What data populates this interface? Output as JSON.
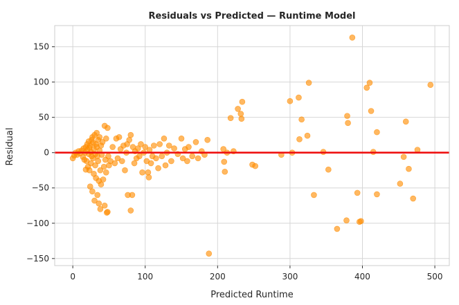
{
  "chart_data": {
    "type": "scatter",
    "title": "Residuals vs Predicted — Runtime Model",
    "xlabel": "Predicted Runtime",
    "ylabel": "Residual",
    "xlim": [
      -25,
      520
    ],
    "ylim": [
      -160,
      180
    ],
    "xticks": [
      0,
      100,
      200,
      300,
      400,
      500
    ],
    "yticks": [
      -150,
      -100,
      -50,
      0,
      50,
      100,
      150
    ],
    "xtick_labels": [
      "0",
      "100",
      "200",
      "300",
      "400",
      "500"
    ],
    "ytick_labels": [
      "−150",
      "−100",
      "−50",
      "0",
      "50",
      "100",
      "150"
    ],
    "grid": true,
    "reference_line": {
      "y": 0,
      "color": "#ee1111"
    },
    "point_color": "#ff8c00",
    "points": [
      [
        0,
        -8
      ],
      [
        2,
        -4
      ],
      [
        4,
        0
      ],
      [
        6,
        -3
      ],
      [
        8,
        2
      ],
      [
        10,
        -1
      ],
      [
        12,
        3
      ],
      [
        14,
        -6
      ],
      [
        15,
        6
      ],
      [
        16,
        -10
      ],
      [
        17,
        0
      ],
      [
        18,
        8
      ],
      [
        18,
        -24
      ],
      [
        19,
        -12
      ],
      [
        20,
        4
      ],
      [
        20,
        12
      ],
      [
        21,
        -20
      ],
      [
        22,
        -2
      ],
      [
        22,
        16
      ],
      [
        23,
        7
      ],
      [
        23,
        -25
      ],
      [
        24,
        -48
      ],
      [
        24,
        10
      ],
      [
        25,
        1
      ],
      [
        25,
        -15
      ],
      [
        26,
        18
      ],
      [
        26,
        -5
      ],
      [
        27,
        -55
      ],
      [
        27,
        22
      ],
      [
        28,
        -8
      ],
      [
        28,
        14
      ],
      [
        29,
        -30
      ],
      [
        29,
        5
      ],
      [
        30,
        -68
      ],
      [
        30,
        25
      ],
      [
        31,
        -2
      ],
      [
        31,
        -18
      ],
      [
        32,
        12
      ],
      [
        32,
        -36
      ],
      [
        33,
        8
      ],
      [
        33,
        28
      ],
      [
        34,
        -60
      ],
      [
        34,
        -5
      ],
      [
        35,
        -12
      ],
      [
        35,
        18
      ],
      [
        36,
        -72
      ],
      [
        36,
        -40
      ],
      [
        37,
        3
      ],
      [
        37,
        22
      ],
      [
        38,
        -80
      ],
      [
        38,
        -25
      ],
      [
        39,
        -45
      ],
      [
        39,
        10
      ],
      [
        40,
        -3
      ],
      [
        41,
        15
      ],
      [
        42,
        -38
      ],
      [
        43,
        -20
      ],
      [
        44,
        38
      ],
      [
        44,
        -75
      ],
      [
        45,
        -10
      ],
      [
        46,
        -28
      ],
      [
        46,
        20
      ],
      [
        47,
        -85
      ],
      [
        48,
        35
      ],
      [
        48,
        -84
      ],
      [
        49,
        -5
      ],
      [
        50,
        -18
      ],
      [
        52,
        -12
      ],
      [
        55,
        8
      ],
      [
        58,
        -15
      ],
      [
        60,
        20
      ],
      [
        62,
        -8
      ],
      [
        64,
        22
      ],
      [
        66,
        5
      ],
      [
        68,
        -12
      ],
      [
        70,
        10
      ],
      [
        72,
        -25
      ],
      [
        74,
        0
      ],
      [
        75,
        12
      ],
      [
        76,
        -60
      ],
      [
        78,
        18
      ],
      [
        80,
        -82
      ],
      [
        80,
        25
      ],
      [
        82,
        -60
      ],
      [
        83,
        8
      ],
      [
        85,
        -15
      ],
      [
        86,
        2
      ],
      [
        88,
        -8
      ],
      [
        90,
        6
      ],
      [
        92,
        -5
      ],
      [
        94,
        12
      ],
      [
        96,
        -28
      ],
      [
        98,
        0
      ],
      [
        100,
        8
      ],
      [
        102,
        -12
      ],
      [
        104,
        -28
      ],
      [
        105,
        -35
      ],
      [
        106,
        4
      ],
      [
        108,
        -15
      ],
      [
        110,
        -5
      ],
      [
        112,
        10
      ],
      [
        115,
        -8
      ],
      [
        118,
        -22
      ],
      [
        120,
        12
      ],
      [
        123,
        -5
      ],
      [
        126,
        20
      ],
      [
        128,
        -18
      ],
      [
        130,
        0
      ],
      [
        133,
        10
      ],
      [
        136,
        -12
      ],
      [
        140,
        6
      ],
      [
        145,
        -2
      ],
      [
        150,
        20
      ],
      [
        152,
        -8
      ],
      [
        155,
        5
      ],
      [
        158,
        -12
      ],
      [
        160,
        8
      ],
      [
        165,
        -5
      ],
      [
        170,
        15
      ],
      [
        173,
        -8
      ],
      [
        178,
        2
      ],
      [
        182,
        -3
      ],
      [
        186,
        18
      ],
      [
        188,
        -143
      ],
      [
        208,
        5
      ],
      [
        209,
        -13
      ],
      [
        210,
        -27
      ],
      [
        213,
        0
      ],
      [
        218,
        49
      ],
      [
        222,
        2
      ],
      [
        228,
        62
      ],
      [
        232,
        55
      ],
      [
        233,
        48
      ],
      [
        234,
        72
      ],
      [
        248,
        -17
      ],
      [
        252,
        -19
      ],
      [
        288,
        -3
      ],
      [
        300,
        73
      ],
      [
        303,
        0
      ],
      [
        312,
        78
      ],
      [
        313,
        19
      ],
      [
        316,
        47
      ],
      [
        324,
        24
      ],
      [
        326,
        99
      ],
      [
        333,
        -60
      ],
      [
        346,
        1
      ],
      [
        353,
        -24
      ],
      [
        365,
        -108
      ],
      [
        378,
        -96
      ],
      [
        379,
        52
      ],
      [
        380,
        42
      ],
      [
        386,
        163
      ],
      [
        393,
        -57
      ],
      [
        396,
        -98
      ],
      [
        398,
        -97
      ],
      [
        406,
        92
      ],
      [
        410,
        99
      ],
      [
        412,
        59
      ],
      [
        415,
        1
      ],
      [
        420,
        -59
      ],
      [
        420,
        29
      ],
      [
        452,
        -44
      ],
      [
        457,
        -6
      ],
      [
        460,
        44
      ],
      [
        464,
        -23
      ],
      [
        470,
        -65
      ],
      [
        476,
        4
      ],
      [
        494,
        96
      ]
    ]
  }
}
